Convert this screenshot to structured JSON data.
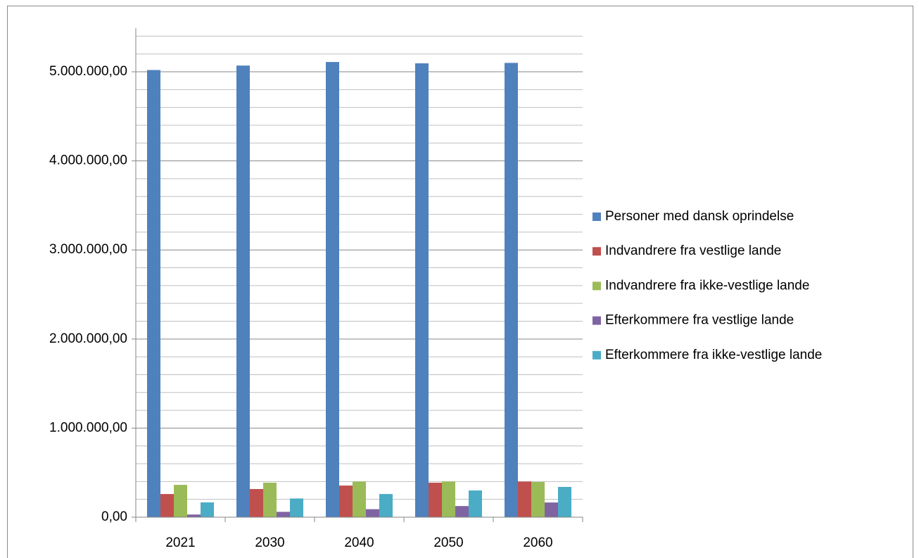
{
  "chart_data": {
    "type": "bar",
    "categories": [
      "2021",
      "2030",
      "2040",
      "2050",
      "2060"
    ],
    "series": [
      {
        "name": "Personer med dansk oprindelse",
        "color": "#4f81bd",
        "values": [
          5020000,
          5070000,
          5110000,
          5095000,
          5100000
        ]
      },
      {
        "name": "Indvandrere fra vestlige lande",
        "color": "#c0504d",
        "values": [
          260000,
          316000,
          355000,
          387000,
          400000
        ]
      },
      {
        "name": "Indvandrere fra ikke-vestlige lande",
        "color": "#9bbb59",
        "values": [
          363000,
          387000,
          400000,
          400000,
          395000
        ]
      },
      {
        "name": "Efterkommere fra vestlige lande",
        "color": "#8064a2",
        "values": [
          30000,
          60000,
          90000,
          125000,
          165000
        ]
      },
      {
        "name": "Efterkommere fra ikke-vestlige lande",
        "color": "#4bacc6",
        "values": [
          166000,
          210000,
          260000,
          300000,
          340000
        ]
      }
    ],
    "ylim": [
      0,
      5400000
    ],
    "yticks": [
      {
        "value": 0,
        "label": "0,00"
      },
      {
        "value": 1000000,
        "label": "1.000.000,00"
      },
      {
        "value": 2000000,
        "label": "2.000.000,00"
      },
      {
        "value": 3000000,
        "label": "3.000.000,00"
      },
      {
        "value": 4000000,
        "label": "4.000.000,00"
      },
      {
        "value": 5000000,
        "label": "5.000.000,00"
      }
    ],
    "yticks_minor": [
      200000,
      400000,
      600000,
      800000,
      1200000,
      1400000,
      1600000,
      1800000,
      2200000,
      2400000,
      2600000,
      2800000,
      3200000,
      3400000,
      3600000,
      3800000,
      4200000,
      4400000,
      4600000,
      4800000,
      5200000,
      5400000
    ],
    "grid": true,
    "legend": "right"
  }
}
